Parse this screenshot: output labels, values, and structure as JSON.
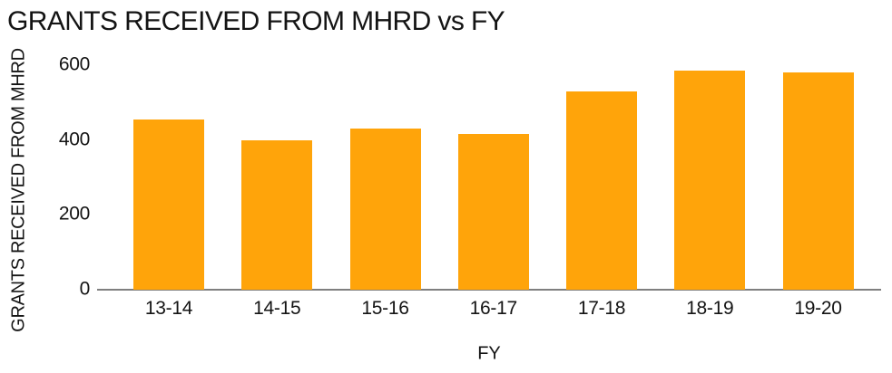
{
  "chart_data": {
    "type": "bar",
    "title": "GRANTS RECEIVED FROM MHRD vs FY",
    "xlabel": "FY",
    "ylabel": "GRANTS RECEIVED FROM MHRD",
    "categories": [
      "13-14",
      "14-15",
      "15-16",
      "16-17",
      "17-18",
      "18-19",
      "19-20"
    ],
    "values": [
      455,
      400,
      430,
      415,
      530,
      585,
      580
    ],
    "ylim": [
      0,
      600
    ],
    "yticks": [
      0,
      200,
      400,
      600
    ],
    "grid": false,
    "legend": "none",
    "bar_color": "#FFA40A",
    "axis_line_color": "#7F7F7F",
    "text_color": "#141414"
  }
}
